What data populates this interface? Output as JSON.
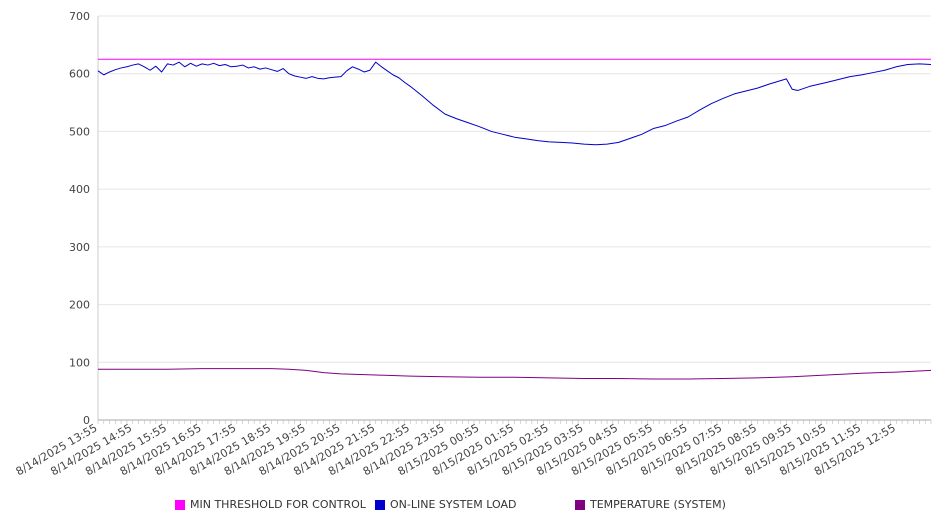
{
  "chart_data": {
    "type": "line",
    "title": "",
    "xlabel": "",
    "ylabel": "",
    "ylim": [
      0,
      700
    ],
    "y_ticks": [
      0,
      100,
      200,
      300,
      400,
      500,
      600,
      700
    ],
    "grid": true,
    "legend_position": "bottom",
    "x_start": "8/14/2025 13:55",
    "x_end": "8/15/2025 13:55",
    "x_tick_labels": [
      "8/14/2025 13:55",
      "8/14/2025 14:55",
      "8/14/2025 15:55",
      "8/14/2025 16:55",
      "8/14/2025 17:55",
      "8/14/2025 18:55",
      "8/14/2025 19:55",
      "8/14/2025 20:55",
      "8/14/2025 21:55",
      "8/14/2025 22:55",
      "8/14/2025 23:55",
      "8/15/2025 00:55",
      "8/15/2025 01:55",
      "8/15/2025 02:55",
      "8/15/2025 03:55",
      "8/15/2025 04:55",
      "8/15/2025 05:55",
      "8/15/2025 06:55",
      "8/15/2025 07:55",
      "8/15/2025 08:55",
      "8/15/2025 09:55",
      "8/15/2025 10:55",
      "8/15/2025 11:55",
      "8/15/2025 12:55"
    ],
    "series": [
      {
        "name": "MIN THRESHOLD FOR CONTROL",
        "color": "#ff00ff",
        "x": [
          "8/14/2025 13:55",
          "8/15/2025 13:55"
        ],
        "y": [
          625,
          625
        ]
      },
      {
        "name": "ON-LINE SYSTEM LOAD",
        "color": "#0000cc",
        "x": [
          "8/14/2025 13:55",
          "8/14/2025 14:05",
          "8/14/2025 14:15",
          "8/14/2025 14:25",
          "8/14/2025 14:35",
          "8/14/2025 14:45",
          "8/14/2025 14:55",
          "8/14/2025 15:05",
          "8/14/2025 15:15",
          "8/14/2025 15:25",
          "8/14/2025 15:35",
          "8/14/2025 15:45",
          "8/14/2025 15:55",
          "8/14/2025 16:05",
          "8/14/2025 16:15",
          "8/14/2025 16:25",
          "8/14/2025 16:35",
          "8/14/2025 16:45",
          "8/14/2025 16:55",
          "8/14/2025 17:05",
          "8/14/2025 17:15",
          "8/14/2025 17:25",
          "8/14/2025 17:35",
          "8/14/2025 17:45",
          "8/14/2025 17:55",
          "8/14/2025 18:05",
          "8/14/2025 18:15",
          "8/14/2025 18:25",
          "8/14/2025 18:35",
          "8/14/2025 18:45",
          "8/14/2025 18:55",
          "8/14/2025 19:05",
          "8/14/2025 19:15",
          "8/14/2025 19:25",
          "8/14/2025 19:35",
          "8/14/2025 19:45",
          "8/14/2025 19:55",
          "8/14/2025 20:05",
          "8/14/2025 20:15",
          "8/14/2025 20:25",
          "8/14/2025 20:35",
          "8/14/2025 20:45",
          "8/14/2025 20:55",
          "8/14/2025 21:05",
          "8/14/2025 21:15",
          "8/14/2025 21:25",
          "8/14/2025 21:35",
          "8/14/2025 21:45",
          "8/14/2025 21:55",
          "8/14/2025 22:05",
          "8/14/2025 22:15",
          "8/14/2025 22:25",
          "8/14/2025 22:35",
          "8/14/2025 22:45",
          "8/14/2025 22:55",
          "8/14/2025 23:15",
          "8/14/2025 23:35",
          "8/14/2025 23:55",
          "8/15/2025 00:15",
          "8/15/2025 00:35",
          "8/15/2025 00:55",
          "8/15/2025 01:15",
          "8/15/2025 01:35",
          "8/15/2025 01:55",
          "8/15/2025 02:15",
          "8/15/2025 02:35",
          "8/15/2025 02:55",
          "8/15/2025 03:15",
          "8/15/2025 03:35",
          "8/15/2025 03:55",
          "8/15/2025 04:15",
          "8/15/2025 04:35",
          "8/15/2025 04:55",
          "8/15/2025 05:15",
          "8/15/2025 05:35",
          "8/15/2025 05:55",
          "8/15/2025 06:15",
          "8/15/2025 06:35",
          "8/15/2025 06:55",
          "8/15/2025 07:15",
          "8/15/2025 07:35",
          "8/15/2025 07:55",
          "8/15/2025 08:15",
          "8/15/2025 08:35",
          "8/15/2025 08:55",
          "8/15/2025 09:15",
          "8/15/2025 09:35",
          "8/15/2025 09:45",
          "8/15/2025 09:55",
          "8/15/2025 10:05",
          "8/15/2025 10:25",
          "8/15/2025 10:55",
          "8/15/2025 11:15",
          "8/15/2025 11:35",
          "8/15/2025 11:55",
          "8/15/2025 12:15",
          "8/15/2025 12:35",
          "8/15/2025 12:55",
          "8/15/2025 13:15",
          "8/15/2025 13:35",
          "8/15/2025 13:55"
        ],
        "y": [
          605,
          598,
          603,
          607,
          610,
          612,
          615,
          617,
          612,
          606,
          613,
          603,
          617,
          615,
          620,
          612,
          618,
          613,
          617,
          615,
          618,
          614,
          616,
          612,
          613,
          615,
          610,
          612,
          608,
          610,
          607,
          604,
          609,
          600,
          596,
          594,
          592,
          595,
          592,
          591,
          593,
          594,
          595,
          605,
          612,
          608,
          603,
          606,
          620,
          612,
          605,
          598,
          593,
          585,
          578,
          562,
          545,
          530,
          522,
          515,
          508,
          500,
          495,
          490,
          487,
          484,
          482,
          481,
          480,
          478,
          477,
          478,
          481,
          488,
          495,
          505,
          510,
          518,
          525,
          537,
          548,
          557,
          565,
          570,
          575,
          582,
          588,
          591,
          573,
          571,
          578,
          585,
          590,
          595,
          598,
          602,
          606,
          612,
          616,
          617,
          616
        ]
      },
      {
        "name": "TEMPERATURE (SYSTEM)",
        "color": "#800080",
        "x": [
          "8/14/2025 13:55",
          "8/14/2025 14:55",
          "8/14/2025 15:55",
          "8/14/2025 16:55",
          "8/14/2025 17:55",
          "8/14/2025 18:55",
          "8/14/2025 19:25",
          "8/14/2025 19:55",
          "8/14/2025 20:25",
          "8/14/2025 20:55",
          "8/14/2025 21:55",
          "8/14/2025 22:55",
          "8/14/2025 23:55",
          "8/15/2025 00:55",
          "8/15/2025 01:55",
          "8/15/2025 02:55",
          "8/15/2025 03:55",
          "8/15/2025 04:55",
          "8/15/2025 05:55",
          "8/15/2025 06:55",
          "8/15/2025 07:55",
          "8/15/2025 08:55",
          "8/15/2025 09:55",
          "8/15/2025 10:55",
          "8/15/2025 11:55",
          "8/15/2025 12:55",
          "8/15/2025 13:55"
        ],
        "y": [
          88,
          88,
          88,
          89,
          89,
          89,
          88,
          86,
          82,
          80,
          78,
          76,
          75,
          74,
          74,
          73,
          72,
          72,
          71,
          71,
          72,
          73,
          75,
          78,
          81,
          83,
          86
        ]
      }
    ]
  }
}
